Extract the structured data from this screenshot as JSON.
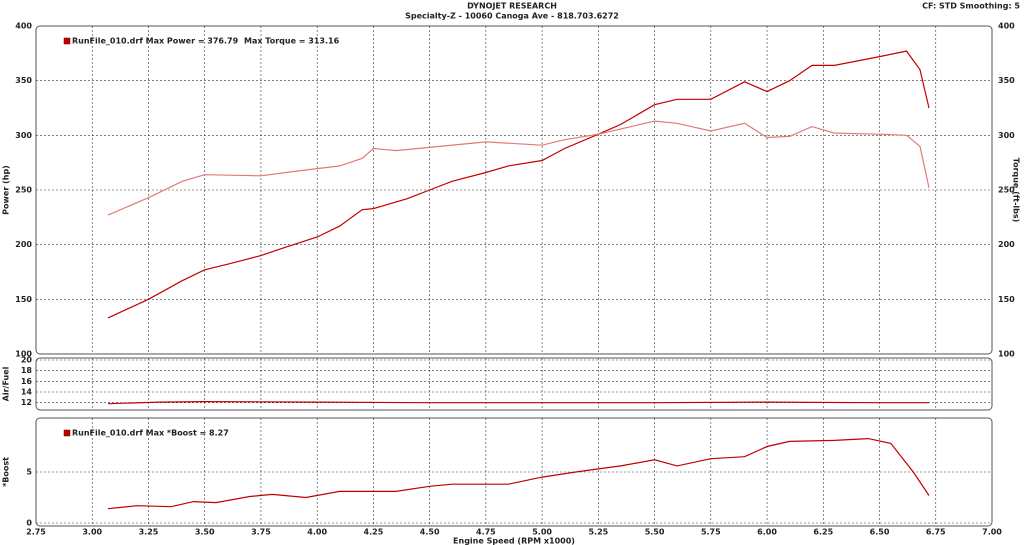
{
  "header": {
    "title": "DYNOJET RESEARCH",
    "subtitle": "Specialty-Z - 10060 Canoga Ave - 818.703.6272",
    "settings": "CF: STD  Smoothing: 5"
  },
  "chart_data": [
    {
      "type": "line",
      "ylabel": "Power (hp)",
      "y2label": "Torque (ft-lbs)",
      "annotations": [
        "RunFile_010.drf Max Power = 376.79",
        "Max Torque = 313.16"
      ],
      "ylim": [
        100,
        400
      ],
      "yticks": [
        100,
        150,
        200,
        250,
        300,
        350,
        400
      ],
      "y2lim": [
        100,
        400
      ],
      "y2ticks": [
        100,
        150,
        200,
        250,
        300,
        350,
        400
      ],
      "grid": true,
      "series": [
        {
          "color": "#c00000",
          "x": [
            3.07,
            3.25,
            3.4,
            3.5,
            3.6,
            3.75,
            3.85,
            4.0,
            4.1,
            4.2,
            4.25,
            4.4,
            4.5,
            4.6,
            4.75,
            4.85,
            5.0,
            5.1,
            5.25,
            5.35,
            5.5,
            5.6,
            5.75,
            5.9,
            6.0,
            6.1,
            6.2,
            6.3,
            6.5,
            6.62,
            6.68,
            6.72
          ],
          "values": [
            133,
            150,
            167,
            177,
            182,
            190,
            197,
            207,
            217,
            232,
            233,
            242,
            250,
            258,
            266,
            272,
            277,
            288,
            301,
            310,
            328,
            333,
            333,
            349,
            340,
            350,
            364,
            364,
            372,
            377,
            360,
            325
          ]
        },
        {
          "color": "#e07a7a",
          "axis": "y2",
          "x": [
            3.07,
            3.25,
            3.4,
            3.5,
            3.75,
            3.9,
            4.1,
            4.2,
            4.25,
            4.35,
            4.5,
            4.75,
            5.0,
            5.1,
            5.25,
            5.5,
            5.6,
            5.75,
            5.9,
            6.0,
            6.1,
            6.2,
            6.3,
            6.5,
            6.62,
            6.68,
            6.72
          ],
          "values": [
            227,
            243,
            258,
            264,
            263,
            267,
            272,
            279,
            288,
            286,
            289,
            294,
            291,
            296,
            301,
            313,
            311,
            304,
            311,
            298,
            299,
            308,
            302,
            301,
            300,
            290,
            252
          ]
        }
      ]
    },
    {
      "type": "line",
      "ylabel": "Air/Fuel",
      "ylim": [
        11,
        20
      ],
      "yticks": [
        12,
        14,
        16,
        18,
        20
      ],
      "grid": true,
      "series": [
        {
          "color": "#c00000",
          "x": [
            3.07,
            3.3,
            3.5,
            4.0,
            4.5,
            5.0,
            5.5,
            6.0,
            6.5,
            6.72
          ],
          "values": [
            11.8,
            12.1,
            12.2,
            12.1,
            12.0,
            12.0,
            12.0,
            12.1,
            12.0,
            12.0
          ]
        }
      ]
    },
    {
      "type": "line",
      "ylabel": "*Boost",
      "xlabel": "Engine Speed (RPM x1000)",
      "annotations": [
        "RunFile_010.drf Max *Boost = 8.27"
      ],
      "ylim": [
        0,
        10
      ],
      "yticks": [
        0,
        5
      ],
      "grid": true,
      "xlim": [
        2.75,
        7
      ],
      "xticks": [
        2.75,
        {
          "value": 3,
          "label": "3.00"
        },
        3.25,
        {
          "value": 3.5,
          "label": "3.50"
        },
        3.75,
        {
          "value": 4,
          "label": "4.00"
        },
        4.25,
        {
          "value": 4.5,
          "label": "4.50"
        },
        4.75,
        {
          "value": 5,
          "label": "5.00"
        },
        5.25,
        {
          "value": 5.5,
          "label": "5.50"
        },
        5.75,
        {
          "value": 6,
          "label": "6.00"
        },
        6.25,
        {
          "value": 6.5,
          "label": "6.50"
        },
        6.75,
        {
          "value": 7,
          "label": "7.00"
        }
      ],
      "series": [
        {
          "color": "#c00000",
          "x": [
            3.07,
            3.2,
            3.35,
            3.45,
            3.55,
            3.7,
            3.8,
            3.95,
            4.1,
            4.35,
            4.5,
            4.6,
            4.85,
            5.0,
            5.15,
            5.25,
            5.35,
            5.5,
            5.6,
            5.75,
            5.9,
            6.0,
            6.1,
            6.3,
            6.45,
            6.55,
            6.65,
            6.72
          ],
          "values": [
            1.4,
            1.7,
            1.6,
            2.1,
            2.0,
            2.6,
            2.8,
            2.5,
            3.1,
            3.1,
            3.6,
            3.8,
            3.8,
            4.5,
            5.0,
            5.3,
            5.6,
            6.2,
            5.6,
            6.3,
            6.5,
            7.5,
            8.0,
            8.1,
            8.27,
            7.8,
            5.0,
            2.7
          ]
        }
      ]
    }
  ]
}
